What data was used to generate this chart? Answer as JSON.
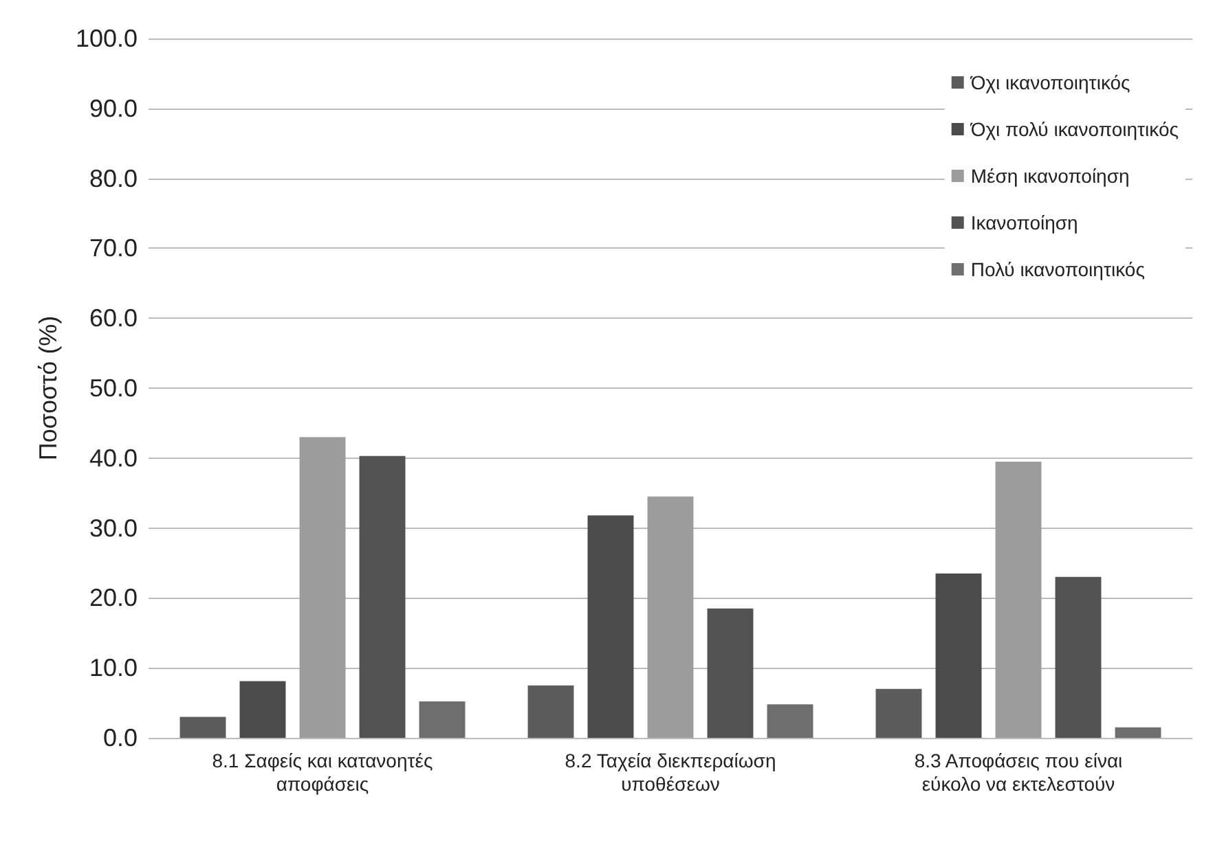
{
  "chart_data": {
    "type": "bar",
    "ylabel": "Ποσοστό (%)",
    "categories": [
      "8.1 Σαφείς και κατανοητές\nαποφάσεις",
      "8.2 Ταχεία διεκπεραίωση\nυποθέσεων",
      "8.3 Αποφάσεις που είναι\nεύκολο να εκτελεστούν"
    ],
    "series": [
      {
        "name": "Όχι ικανοποιητικός",
        "color": "#5c5c5c",
        "values": [
          3.0,
          7.5,
          7.0
        ]
      },
      {
        "name": "Όχι πολύ ικανοποιητικός",
        "color": "#4b4b4b",
        "values": [
          8.1,
          31.8,
          23.5
        ]
      },
      {
        "name": "Μέση ικανοποίηση",
        "color": "#9c9c9c",
        "values": [
          43.0,
          34.5,
          39.5
        ]
      },
      {
        "name": "Ικανοποίηση",
        "color": "#525252",
        "values": [
          40.3,
          18.5,
          23.0
        ]
      },
      {
        "name": "Πολύ ικανοποιητικός",
        "color": "#6e6e6e",
        "values": [
          5.2,
          4.8,
          1.5
        ]
      }
    ],
    "ylim": [
      0,
      100
    ],
    "yticks": [
      {
        "value": 0,
        "label": "0.0"
      },
      {
        "value": 10,
        "label": "10.0"
      },
      {
        "value": 20,
        "label": "20.0"
      },
      {
        "value": 30,
        "label": "30.0"
      },
      {
        "value": 40,
        "label": "40.0"
      },
      {
        "value": 50,
        "label": "50.0"
      },
      {
        "value": 60,
        "label": "60.0"
      },
      {
        "value": 70,
        "label": "70.0"
      },
      {
        "value": 80,
        "label": "80.0"
      },
      {
        "value": 90,
        "label": "90.0"
      },
      {
        "value": 100,
        "label": "100.0"
      }
    ],
    "grid": "y",
    "legend": "top right"
  }
}
